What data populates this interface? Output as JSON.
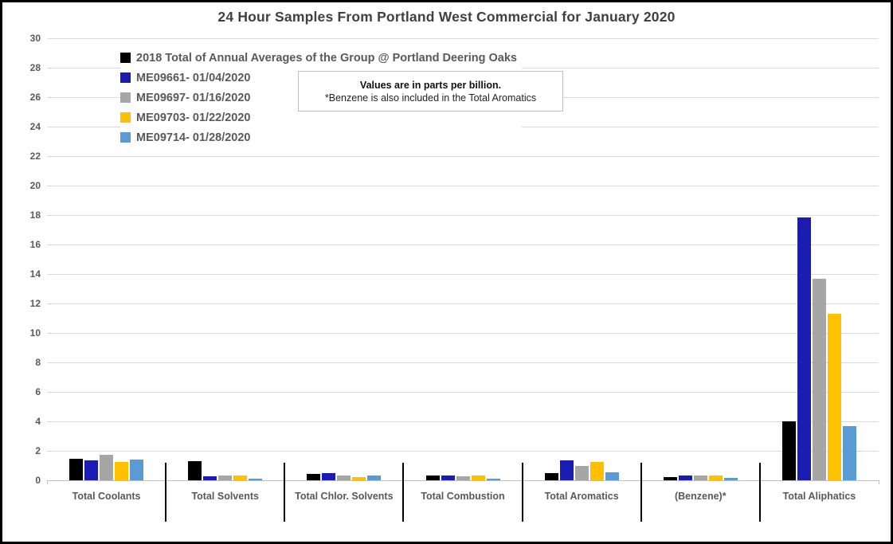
{
  "chart_data": {
    "type": "bar",
    "title": "24 Hour Samples From Portland West Commercial for January 2020",
    "categories": [
      "Total Coolants",
      "Total Solvents",
      "Total Chlor. Solvents",
      "Total Combustion",
      "Total Aromatics",
      "(Benzene)*",
      "Total Aliphatics"
    ],
    "series": [
      {
        "name": "2018 Total of Annual Averages of the Group @ Portland Deering Oaks",
        "color": "#000000",
        "values": [
          1.45,
          1.3,
          0.45,
          0.3,
          0.5,
          0.2,
          4.0
        ]
      },
      {
        "name": "ME09661- 01/04/2020",
        "color": "#1b1cb2",
        "values": [
          1.35,
          0.25,
          0.5,
          0.3,
          1.35,
          0.35,
          17.85
        ]
      },
      {
        "name": "ME09697- 01/16/2020",
        "color": "#a6a6a6",
        "values": [
          1.75,
          0.3,
          0.35,
          0.25,
          1.0,
          0.3,
          13.7
        ]
      },
      {
        "name": "ME09703- 01/22/2020",
        "color": "#ffc000",
        "values": [
          1.25,
          0.35,
          0.2,
          0.3,
          1.25,
          0.3,
          11.3
        ]
      },
      {
        "name": "ME09714- 01/28/2020",
        "color": "#5b9bd5",
        "values": [
          1.4,
          0.1,
          0.3,
          0.1,
          0.55,
          0.15,
          3.65
        ]
      }
    ],
    "ylim": [
      0,
      30
    ],
    "y_tick_step": 2,
    "xlabel": "",
    "ylabel": "",
    "units": "parts per billion",
    "grid": "horizontal",
    "legend_position": "upper-left-inside"
  },
  "note": {
    "line1": "Values are in parts per billion.",
    "line2": "*Benzene is also included in the Total Aromatics"
  },
  "colors": {
    "gridline": "#d9d9d9",
    "axis_line": "#bfbfbf",
    "text": "#595959",
    "title_text": "#404040",
    "divider": "#000000",
    "background": "#ffffff",
    "frame_border": "#000000"
  }
}
